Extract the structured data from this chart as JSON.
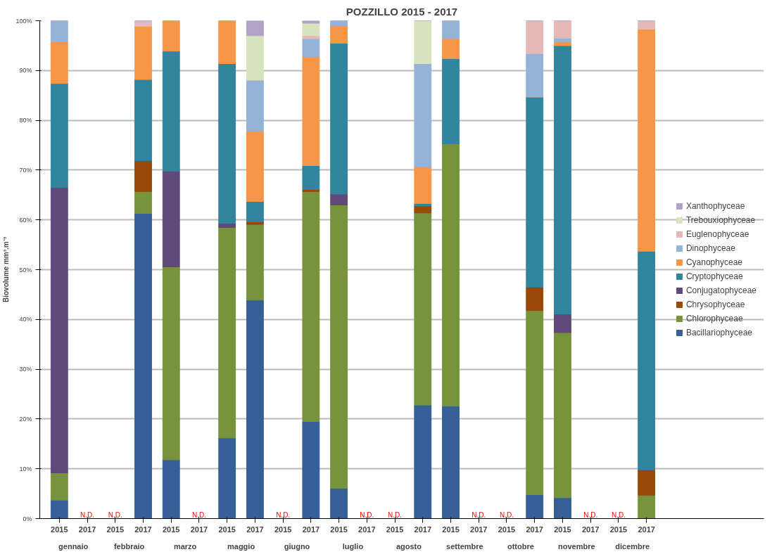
{
  "chart_data": {
    "type": "bar",
    "stacked": true,
    "title": "POZZILLO 2015 - 2017",
    "ylabel": "Biovolume mm³.m⁻³",
    "categories": [
      "2015",
      "2017",
      "2015",
      "2017",
      "2015",
      "2017",
      "2015",
      "2017",
      "2015",
      "2017",
      "2015",
      "2017",
      "2015",
      "2017",
      "2015",
      "2017",
      "2015",
      "2017",
      "2015",
      "2017",
      "2015",
      "2017"
    ],
    "annotations": [
      "gennaio",
      "febbraio",
      "marzo",
      "maggio",
      "giugno",
      "luglio",
      "agosto",
      "settembre",
      "ottobre",
      "novembre",
      "dicembre"
    ],
    "totals": [
      null,
      "N.D.",
      "N.D.",
      null,
      null,
      "N.D.",
      null,
      null,
      "N.D.",
      null,
      null,
      "N.D.",
      "N.D.",
      null,
      null,
      "N.D.",
      "N.D.",
      null,
      null,
      "N.D.",
      "N.D.",
      null
    ],
    "ylim": [
      0,
      100
    ],
    "yticks": [
      {
        "value": 0,
        "label": "0%"
      },
      {
        "value": 10,
        "label": "10%"
      },
      {
        "value": 20,
        "label": "20%"
      },
      {
        "value": 30,
        "label": "30%"
      },
      {
        "value": 40,
        "label": "40%"
      },
      {
        "value": 50,
        "label": "50%"
      },
      {
        "value": 60,
        "label": "60%"
      },
      {
        "value": 70,
        "label": "70%"
      },
      {
        "value": 80,
        "label": "80%"
      },
      {
        "value": 90,
        "label": "90%"
      },
      {
        "value": 100,
        "label": "100%"
      }
    ],
    "grid": "y",
    "legend": "right",
    "series": [
      {
        "name": "Bacillariophyceae",
        "color": "#355f96",
        "values": [
          3.7,
          null,
          null,
          61.3,
          11.8,
          null,
          16.2,
          43.9,
          null,
          19.5,
          6.1,
          null,
          null,
          22.8,
          22.6,
          null,
          null,
          4.8,
          4.2,
          null,
          null,
          0
        ]
      },
      {
        "name": "Chlorophyceae",
        "color": "#77933c",
        "values": [
          5.5,
          null,
          null,
          4.4,
          38.8,
          null,
          42.3,
          15.2,
          null,
          46.2,
          56.9,
          null,
          null,
          38.6,
          52.7,
          null,
          null,
          37.0,
          33.2,
          null,
          null,
          4.7
        ]
      },
      {
        "name": "Chrysophyceae",
        "color": "#984807",
        "values": [
          0,
          null,
          null,
          6.2,
          0,
          null,
          0,
          0.5,
          null,
          0.4,
          0,
          null,
          null,
          1.4,
          0,
          null,
          null,
          4.7,
          0,
          null,
          null,
          5.1
        ]
      },
      {
        "name": "Conjugatophyceae",
        "color": "#604a7b",
        "values": [
          57.3,
          null,
          null,
          0,
          19.2,
          null,
          0.8,
          0,
          null,
          0,
          2.2,
          null,
          null,
          0,
          0,
          null,
          null,
          0,
          3.7,
          null,
          null,
          0
        ]
      },
      {
        "name": "Cryptophyceae",
        "color": "#31859c",
        "values": [
          20.9,
          null,
          null,
          16.3,
          24.1,
          null,
          32.1,
          4.1,
          null,
          4.8,
          30.3,
          null,
          null,
          0.5,
          17.1,
          null,
          null,
          38.2,
          53.9,
          null,
          null,
          43.9
        ]
      },
      {
        "name": "Cyanophyceae",
        "color": "#f79646",
        "values": [
          8.4,
          null,
          null,
          10.7,
          6.1,
          null,
          8.6,
          14.1,
          null,
          21.9,
          3.5,
          null,
          null,
          7.3,
          4.0,
          null,
          null,
          0,
          0.8,
          null,
          null,
          44.6
        ]
      },
      {
        "name": "Dinophyceae",
        "color": "#95b3d7",
        "values": [
          4.2,
          null,
          null,
          0,
          0,
          null,
          0,
          10.3,
          null,
          3.6,
          1.0,
          null,
          null,
          20.8,
          3.6,
          null,
          null,
          8.7,
          0.7,
          null,
          null,
          0
        ]
      },
      {
        "name": "Euglenophyceae",
        "color": "#e6b9b8",
        "values": [
          0,
          null,
          null,
          1.1,
          0,
          null,
          0,
          0,
          null,
          0.6,
          0,
          null,
          null,
          0,
          0,
          null,
          null,
          6.6,
          3.5,
          null,
          null,
          1.7
        ]
      },
      {
        "name": "Trebouxiophyceae",
        "color": "#d7e4bd",
        "values": [
          0,
          null,
          null,
          0,
          0,
          null,
          0,
          8.9,
          null,
          2.5,
          0,
          null,
          null,
          8.6,
          0,
          null,
          null,
          0,
          0,
          null,
          null,
          0
        ]
      },
      {
        "name": "Xanthophyceae",
        "color": "#b3a2c7",
        "values": [
          0,
          null,
          null,
          0,
          0,
          null,
          0,
          3.0,
          null,
          0.5,
          0,
          null,
          null,
          0,
          0,
          null,
          null,
          0,
          0,
          null,
          null,
          0
        ]
      }
    ]
  }
}
